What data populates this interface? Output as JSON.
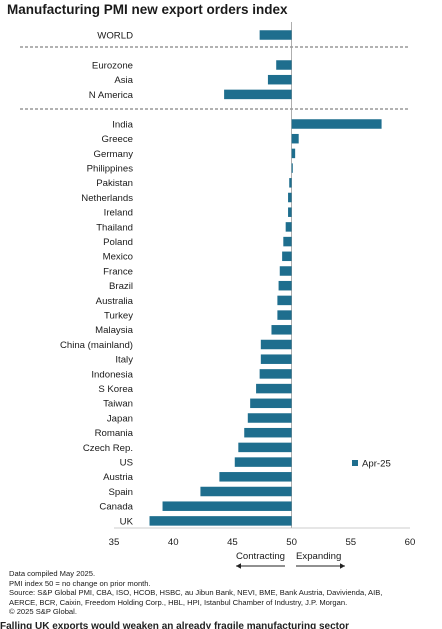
{
  "chart_data": {
    "type": "bar",
    "orientation": "horizontal",
    "title": "Manufacturing PMI new export orders index",
    "xlim": [
      35,
      60
    ],
    "xticks": [
      35,
      40,
      45,
      50,
      55,
      60
    ],
    "baseline": 50,
    "bar_color": "#1e6e8e",
    "groups": [
      {
        "categories": [
          "WORLD"
        ],
        "values": [
          47.3
        ]
      },
      {
        "categories": [
          "Eurozone",
          "Asia",
          "N America"
        ],
        "values": [
          48.7,
          48.0,
          44.3
        ]
      },
      {
        "categories": [
          "India",
          "Greece",
          "Germany",
          "Philippines",
          "Pakistan",
          "Netherlands",
          "Ireland",
          "Thailand",
          "Poland",
          "Mexico",
          "France",
          "Brazil",
          "Australia",
          "Turkey",
          "Malaysia",
          "China (mainland)",
          "Italy",
          "Indonesia",
          "S Korea",
          "Taiwan",
          "Japan",
          "Romania",
          "Czech Rep.",
          "US",
          "Austria",
          "Spain",
          "Canada",
          "UK"
        ],
        "values": [
          57.6,
          50.6,
          50.3,
          50.1,
          49.8,
          49.7,
          49.7,
          49.5,
          49.3,
          49.2,
          49.0,
          48.9,
          48.8,
          48.8,
          48.3,
          47.4,
          47.4,
          47.3,
          47.0,
          46.5,
          46.3,
          46.0,
          45.5,
          45.2,
          43.9,
          42.3,
          39.1,
          38.0
        ]
      }
    ],
    "legend": {
      "position": "bottom-right",
      "entries": [
        {
          "name": "Apr-25"
        }
      ]
    },
    "annotations": {
      "left": "Contracting",
      "right": "Expanding"
    }
  },
  "footnotes": [
    "Data compiled May 2025.",
    "PMI index 50 = no change on prior month.",
    "Source: S&P Global PMI, CBA, ISO, HCOB, HSBC, au Jibun Bank, NEVI, BME, Bank Austria, Davivienda, AIB,",
    "AERCE, BCR, Caixin, Freedom Holding Corp., HBL, HPI, Istanbul Chamber of Industry, J.P. Morgan.",
    "© 2025 S&P Global."
  ],
  "cut_caption": "Falling UK exports would weaken an already fragile manufacturing sector"
}
